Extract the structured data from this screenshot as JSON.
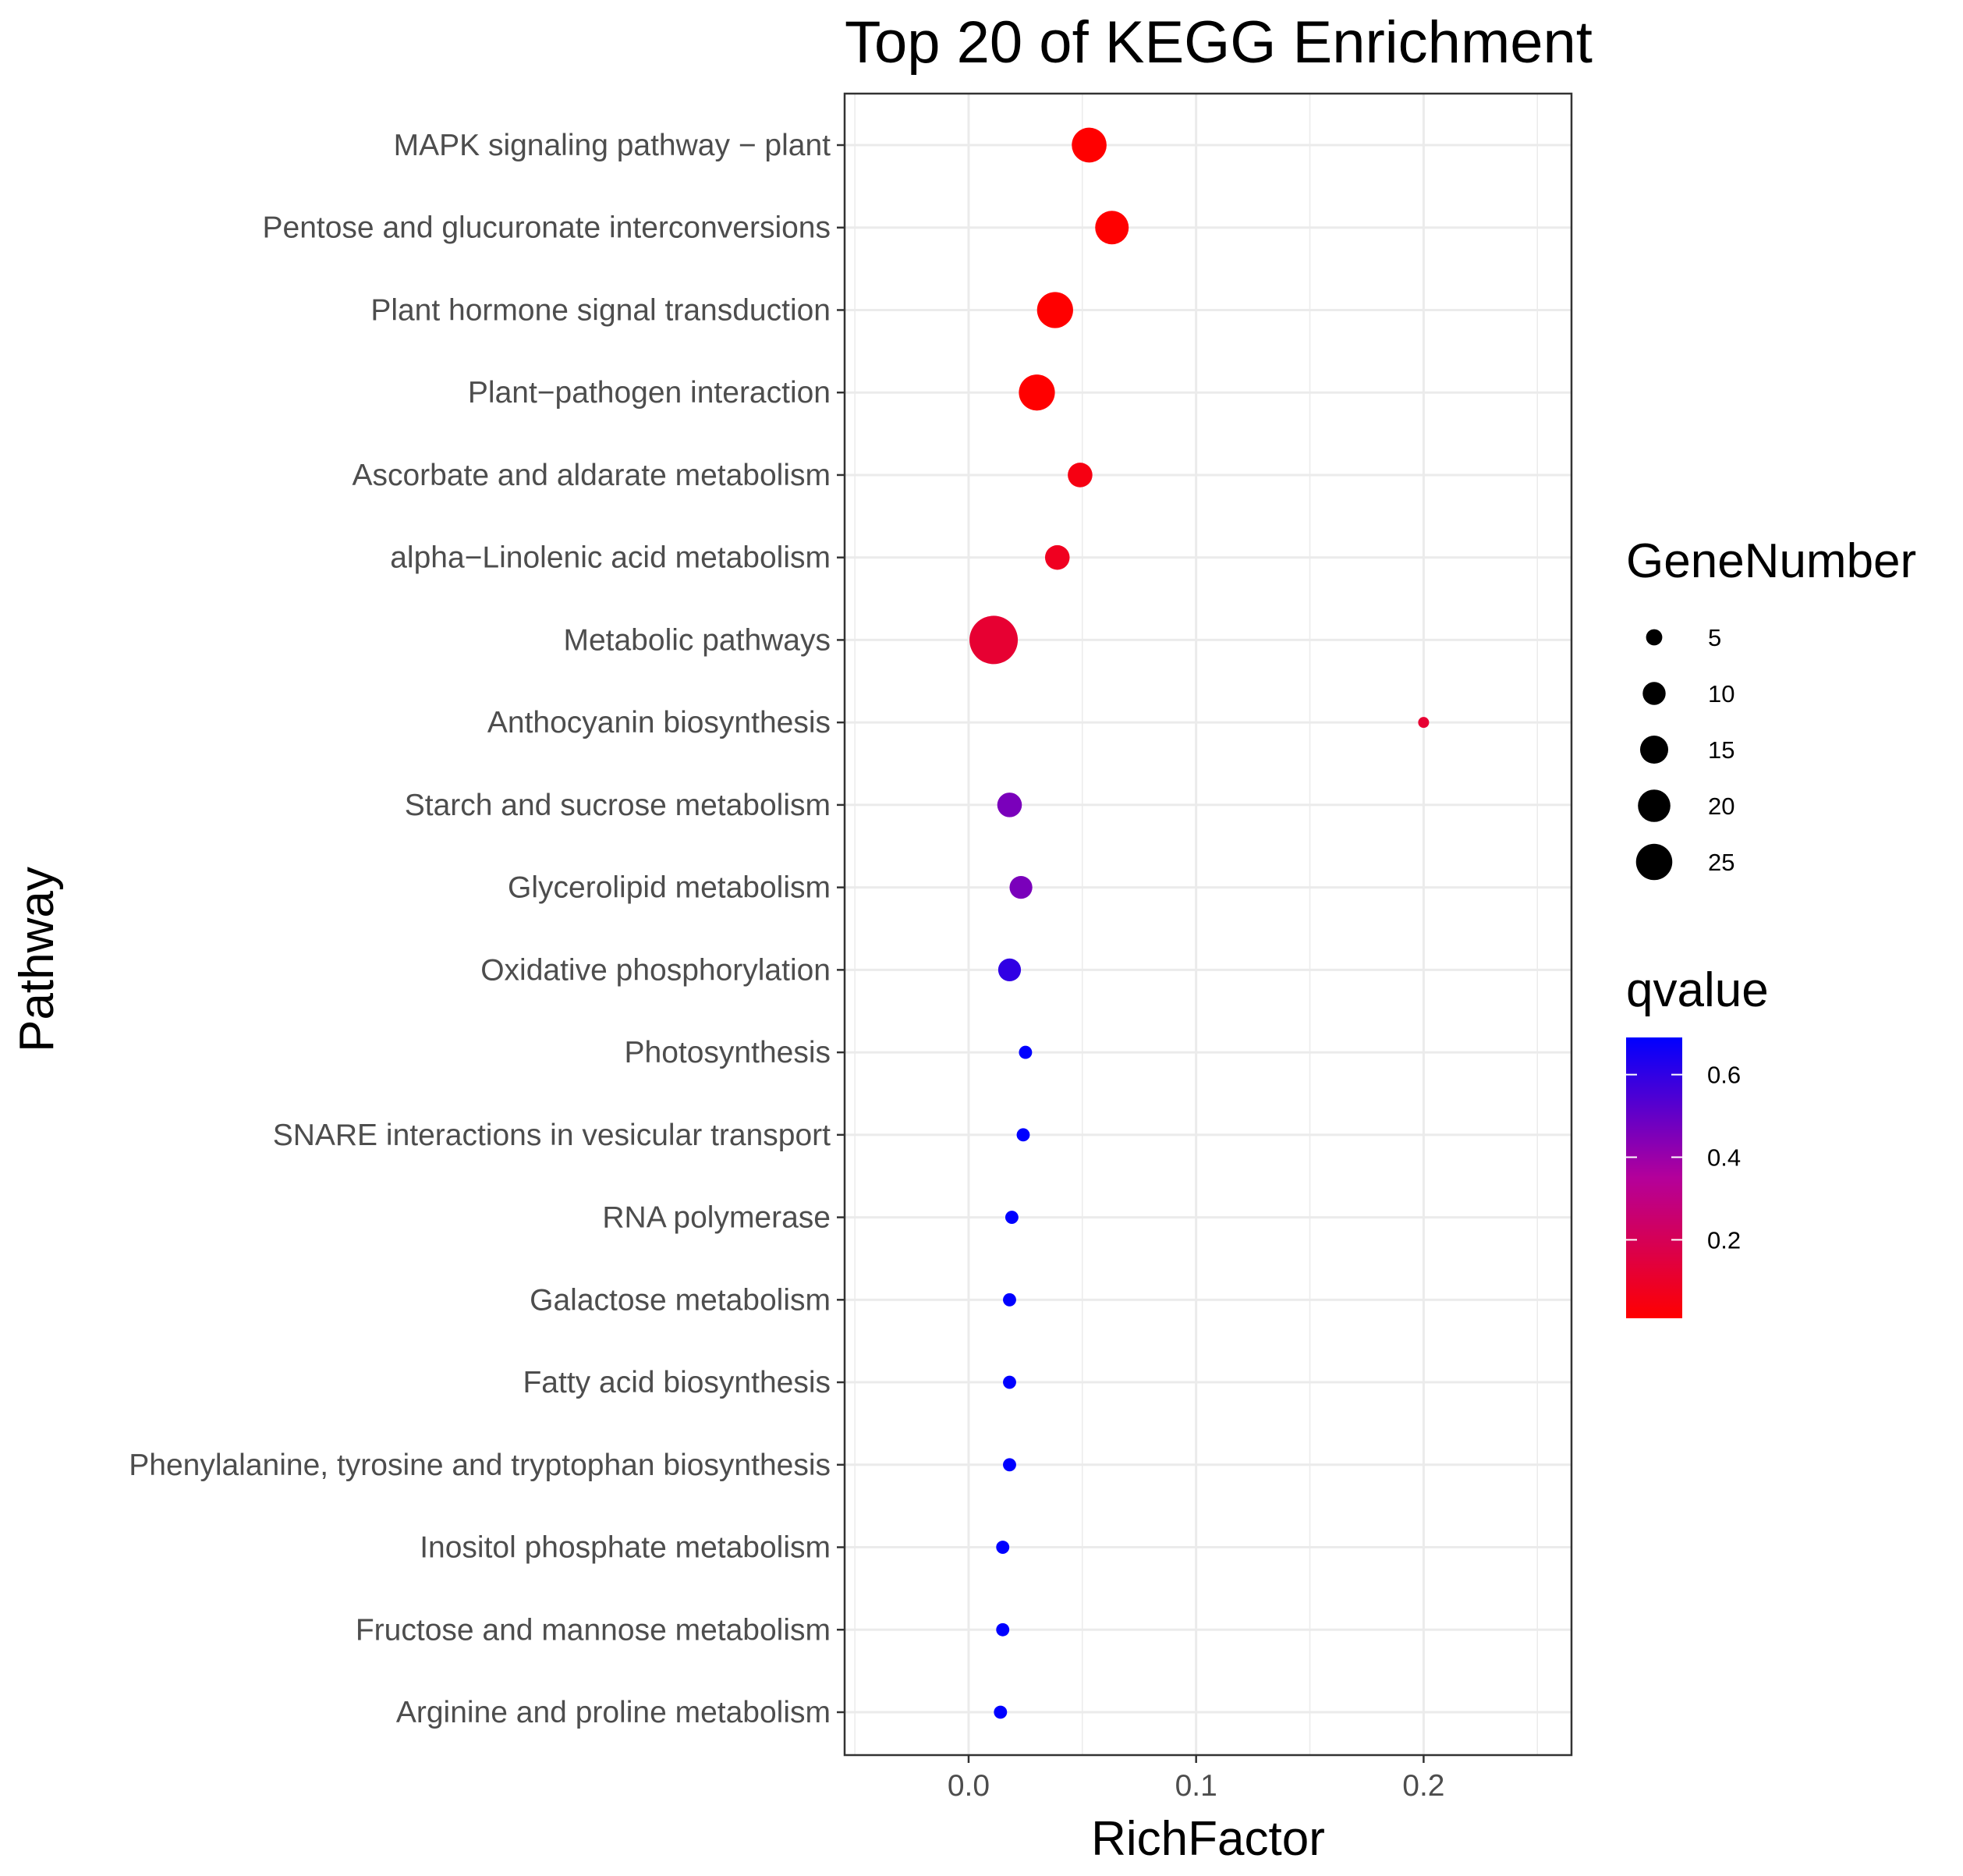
{
  "chart_data": {
    "type": "scatter",
    "title": "Top 20 of KEGG Enrichment",
    "xlabel": "RichFactor",
    "ylabel": "Pathway",
    "xlim": [
      -0.0545,
      0.265
    ],
    "xticks": [
      "0.0",
      "0.1",
      "0.2"
    ],
    "xtick_values": [
      0.0,
      0.1,
      0.2
    ],
    "grid": true,
    "categories": [
      "MAPK signaling pathway − plant",
      "Pentose and glucuronate interconversions",
      "Plant hormone signal transduction",
      "Plant−pathogen interaction",
      "Ascorbate and aldarate metabolism",
      "alpha−Linolenic acid metabolism",
      "Metabolic pathways",
      "Anthocyanin biosynthesis",
      "Starch and sucrose metabolism",
      "Glycerolipid metabolism",
      "Oxidative phosphorylation",
      "Photosynthesis",
      "SNARE interactions in vesicular transport",
      "RNA polymerase",
      "Galactose metabolism",
      "Fatty acid biosynthesis",
      "Phenylalanine, tyrosine and tryptophan biosynthesis",
      "Inositol phosphate metabolism",
      "Fructose and mannose metabolism",
      "Arginine and proline metabolism"
    ],
    "points": [
      {
        "pathway": "MAPK signaling pathway − plant",
        "rich_factor": 0.053,
        "gene_number": 14,
        "qvalue": 0.01
      },
      {
        "pathway": "Pentose and glucuronate interconversions",
        "rich_factor": 0.063,
        "gene_number": 13,
        "qvalue": 0.01
      },
      {
        "pathway": "Plant hormone signal transduction",
        "rich_factor": 0.038,
        "gene_number": 15,
        "qvalue": 0.01
      },
      {
        "pathway": "Plant−pathogen interaction",
        "rich_factor": 0.03,
        "gene_number": 15,
        "qvalue": 0.01
      },
      {
        "pathway": "Ascorbate and aldarate metabolism",
        "rich_factor": 0.049,
        "gene_number": 7,
        "qvalue": 0.05
      },
      {
        "pathway": "alpha−Linolenic acid metabolism",
        "rich_factor": 0.039,
        "gene_number": 7,
        "qvalue": 0.08
      },
      {
        "pathway": "Metabolic pathways",
        "rich_factor": 0.011,
        "gene_number": 27,
        "qvalue": 0.12
      },
      {
        "pathway": "Anthocyanin biosynthesis",
        "rich_factor": 0.2,
        "gene_number": 1,
        "qvalue": 0.12
      },
      {
        "pathway": "Starch and sucrose metabolism",
        "rich_factor": 0.018,
        "gene_number": 7,
        "qvalue": 0.46
      },
      {
        "pathway": "Glycerolipid metabolism",
        "rich_factor": 0.023,
        "gene_number": 6,
        "qvalue": 0.46
      },
      {
        "pathway": "Oxidative phosphorylation",
        "rich_factor": 0.018,
        "gene_number": 6,
        "qvalue": 0.6
      },
      {
        "pathway": "Photosynthesis",
        "rich_factor": 0.025,
        "gene_number": 2,
        "qvalue": 0.69
      },
      {
        "pathway": "SNARE interactions in vesicular transport",
        "rich_factor": 0.024,
        "gene_number": 2,
        "qvalue": 0.69
      },
      {
        "pathway": "RNA polymerase",
        "rich_factor": 0.019,
        "gene_number": 2,
        "qvalue": 0.69
      },
      {
        "pathway": "Galactose metabolism",
        "rich_factor": 0.018,
        "gene_number": 2,
        "qvalue": 0.69
      },
      {
        "pathway": "Fatty acid biosynthesis",
        "rich_factor": 0.018,
        "gene_number": 2,
        "qvalue": 0.69
      },
      {
        "pathway": "Phenylalanine, tyrosine and tryptophan biosynthesis",
        "rich_factor": 0.018,
        "gene_number": 2,
        "qvalue": 0.69
      },
      {
        "pathway": "Inositol phosphate metabolism",
        "rich_factor": 0.015,
        "gene_number": 2,
        "qvalue": 0.69
      },
      {
        "pathway": "Fructose and mannose metabolism",
        "rich_factor": 0.015,
        "gene_number": 2,
        "qvalue": 0.69
      },
      {
        "pathway": "Arginine and proline metabolism",
        "rich_factor": 0.014,
        "gene_number": 2,
        "qvalue": 0.69
      }
    ],
    "size_legend": {
      "title": "GeneNumber",
      "values": [
        5,
        10,
        15,
        20,
        25
      ],
      "labels": [
        "5",
        "10",
        "15",
        "20",
        "25"
      ]
    },
    "color_legend": {
      "title": "qvalue",
      "range": [
        0.01,
        0.69
      ],
      "ticks": [
        0.2,
        0.4,
        0.6
      ],
      "labels": [
        "0.2",
        "0.4",
        "0.6"
      ],
      "low_color": "#FF0000",
      "high_color": "#0000FF"
    },
    "legend_position": "right",
    "colors": {
      "panel_border": "#333333",
      "grid": "#ebebeb",
      "tick_text": "#4d4d4d",
      "background": "#ffffff"
    }
  }
}
